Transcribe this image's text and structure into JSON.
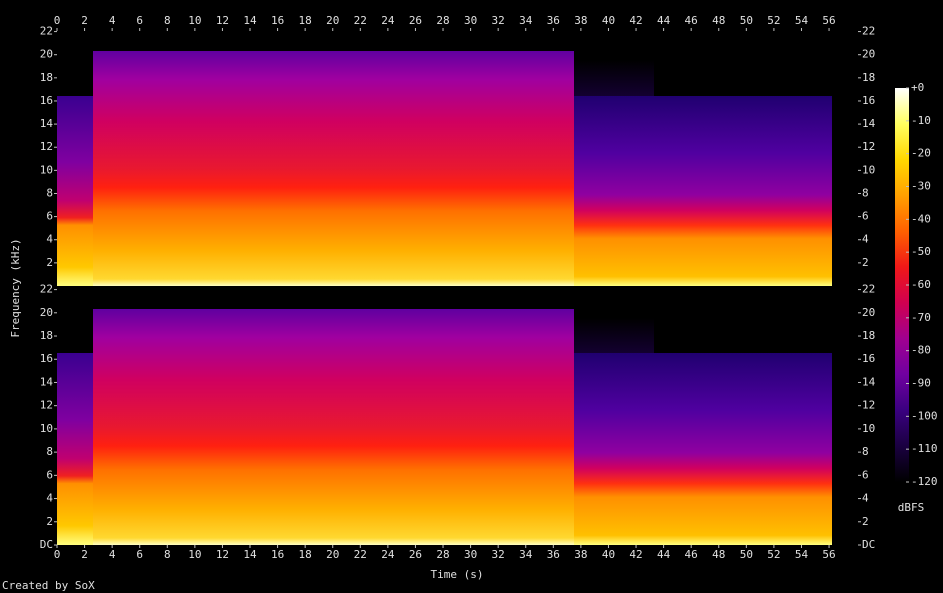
{
  "chart_data": {
    "type": "spectrogram",
    "x_label": "Time (s)",
    "y_label": "Frequency (kHz)",
    "credit": "Created by SoX",
    "xlim": [
      0,
      58.1
    ],
    "xticks": [
      0,
      2,
      4,
      6,
      8,
      10,
      12,
      14,
      16,
      18,
      20,
      22,
      24,
      26,
      28,
      30,
      32,
      34,
      36,
      38,
      40,
      42,
      44,
      46,
      48,
      50,
      52,
      54,
      56
    ],
    "panels": [
      {
        "ylim": [
          0,
          22.05
        ],
        "yticks": [
          2,
          4,
          6,
          8,
          10,
          12,
          14,
          16,
          18,
          20,
          22
        ]
      },
      {
        "ylim": [
          0,
          22.05
        ],
        "yticks": [
          {
            "value": 0,
            "label": "DC"
          },
          2,
          4,
          6,
          8,
          10,
          12,
          14,
          16,
          18,
          20,
          22
        ]
      }
    ],
    "colorbar": {
      "label": "dBFS",
      "lim": [
        -120,
        0
      ],
      "ticks": [
        {
          "value": 0,
          "label": "+0"
        },
        -10,
        -20,
        -30,
        -40,
        -50,
        -60,
        -70,
        -80,
        -90,
        -100,
        -110,
        -120
      ],
      "colors": [
        "#000000",
        "#1a0040",
        "#3a0080",
        "#7000a0",
        "#a00090",
        "#d00050",
        "#f01818",
        "#ff6000",
        "#ffa000",
        "#ffd800",
        "#ffff60",
        "#ffffff"
      ]
    }
  }
}
